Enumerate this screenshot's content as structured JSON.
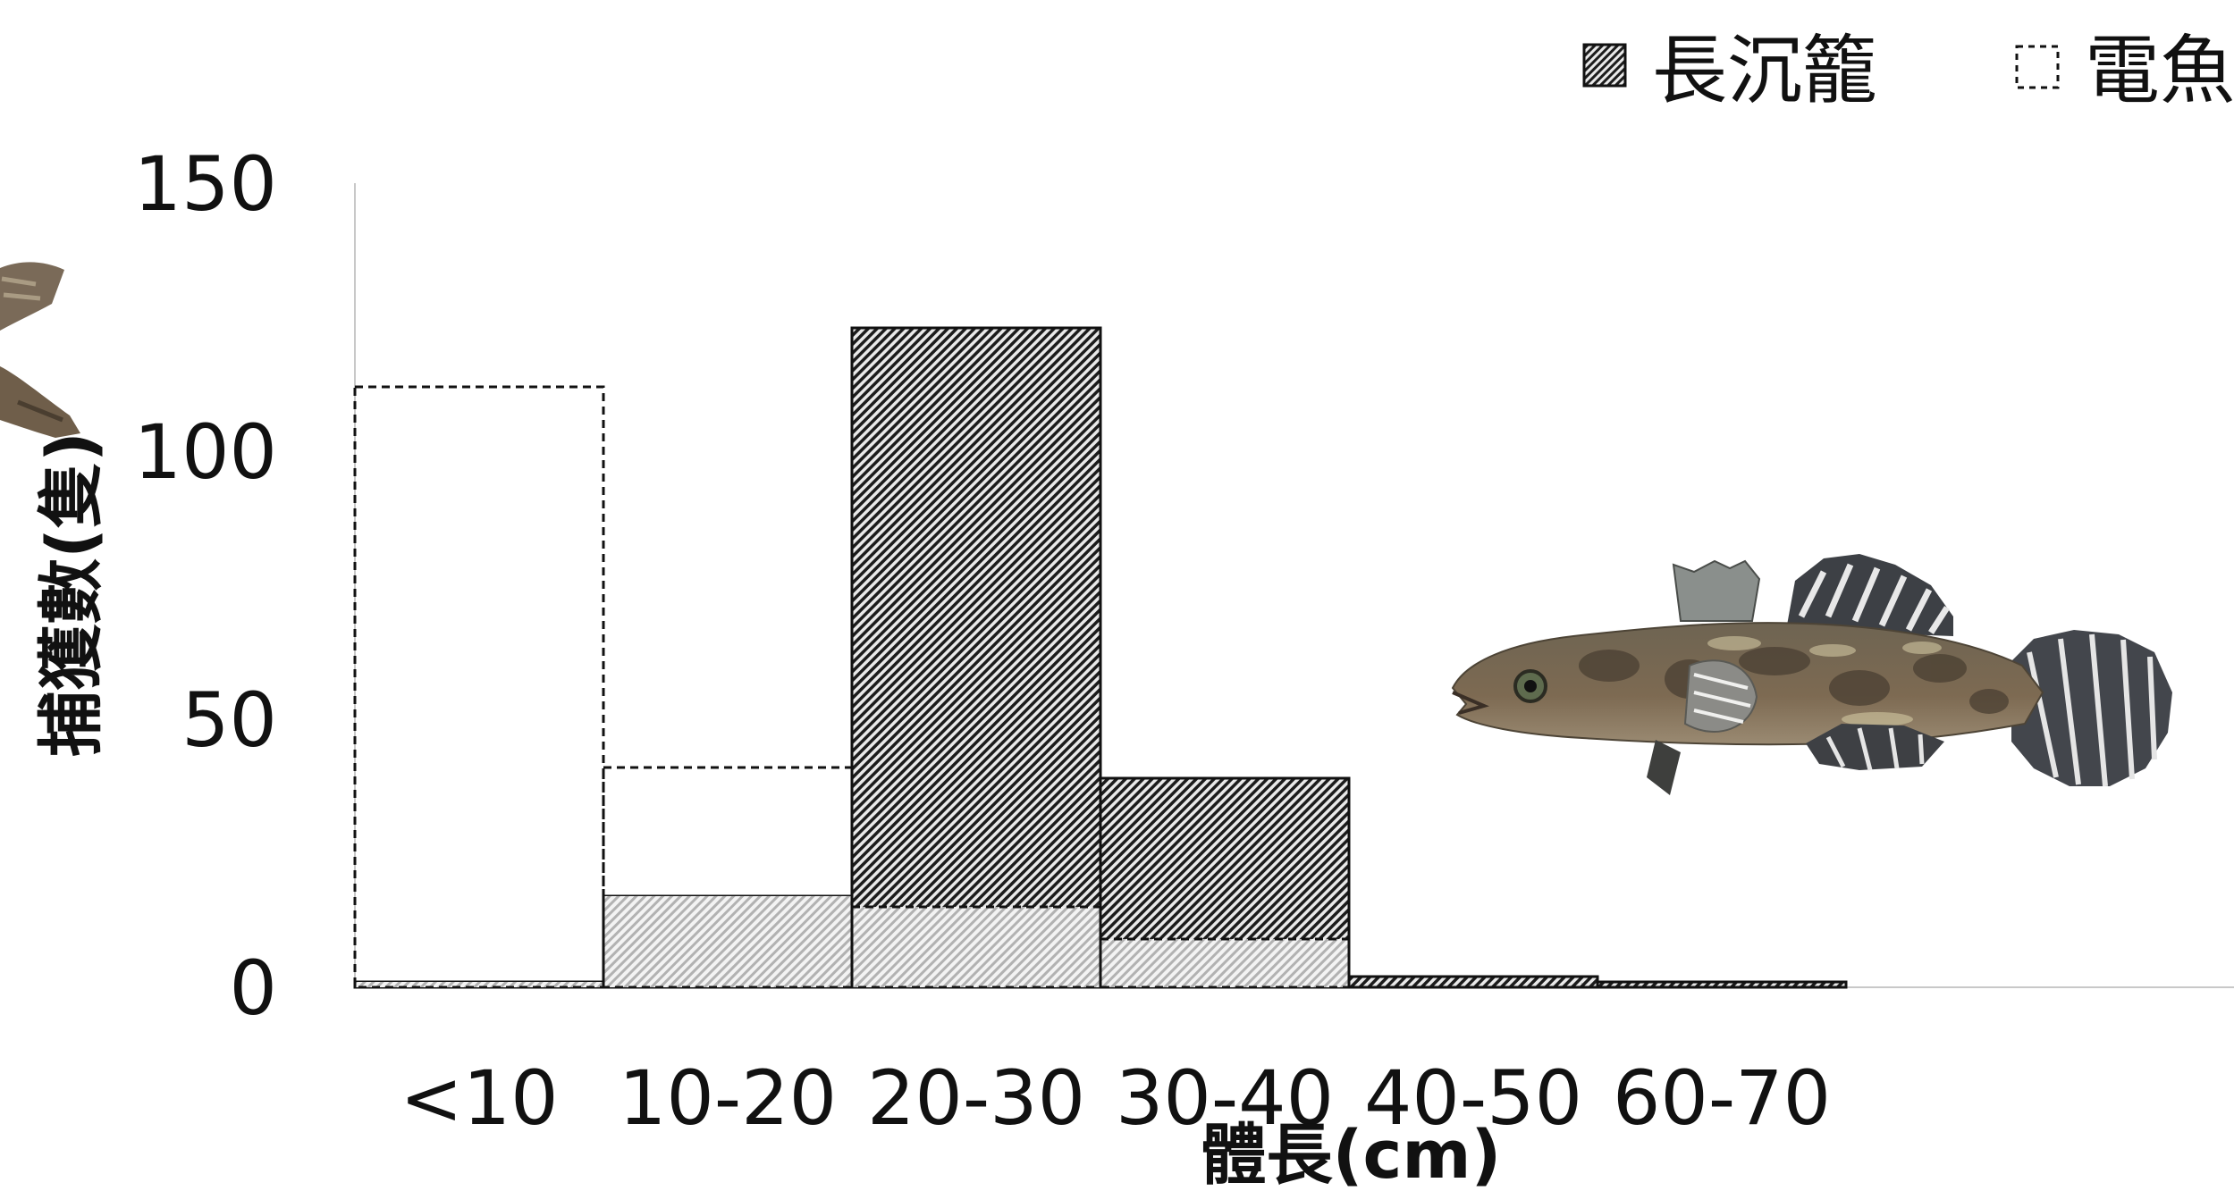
{
  "chart_data": {
    "type": "bar",
    "categories": [
      "<10",
      "10-20",
      "20-30",
      "30-40",
      "40-50",
      "60-70"
    ],
    "series": [
      {
        "name": "長沉籠",
        "values": [
          1,
          17,
          123,
          39,
          2,
          1
        ],
        "fill": "dense-hatch",
        "color": "#222222"
      },
      {
        "name": "電魚",
        "values": [
          112,
          41,
          15,
          9,
          0,
          0
        ],
        "fill": "none-dashed",
        "color": "#222222"
      }
    ],
    "overlap_fill_color": "#cccccc",
    "xlabel": "體長(cm)",
    "ylabel": "捕獲數(隻)",
    "yticks": [
      0,
      50,
      100,
      150
    ],
    "ylim": [
      0,
      150
    ],
    "grid": false,
    "legend_position": "top-right",
    "decorations": [
      "fish-photo"
    ]
  }
}
